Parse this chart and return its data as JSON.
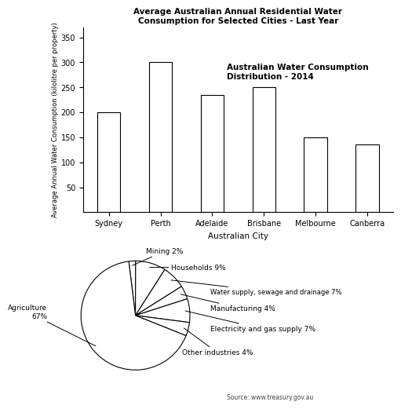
{
  "bar_cities": [
    "Sydney",
    "Perth",
    "Adelaide",
    "Brisbane",
    "Melbourne",
    "Canberra"
  ],
  "bar_values": [
    200,
    300,
    235,
    250,
    150,
    135
  ],
  "bar_xlabel": "Australian City",
  "bar_ylabel": "Average Annual Water Consumption (kilolitre per property)",
  "bar_title": "Average Australian Annual Residential Water\nConsumption for Selected Cities - Last Year",
  "bar_ylim": [
    0,
    370
  ],
  "bar_yticks": [
    50,
    100,
    150,
    200,
    250,
    300,
    350
  ],
  "pie_title": "Australian Water Consumption\nDistribution - 2014",
  "pie_labels": [
    "Mining 2%",
    "Households 9%",
    "Water supply, sewage and drainage 7%",
    "Manufacturing 4%",
    "Electricity and gas supply 7%",
    "Other industries 4%",
    "Agriculture\n67%"
  ],
  "pie_values": [
    2,
    9,
    7,
    4,
    7,
    4,
    67
  ],
  "source_text": "Source: www.treasury.gov.au",
  "background_color": "#ffffff",
  "bar_color": "#ffffff",
  "bar_edgecolor": "#000000"
}
